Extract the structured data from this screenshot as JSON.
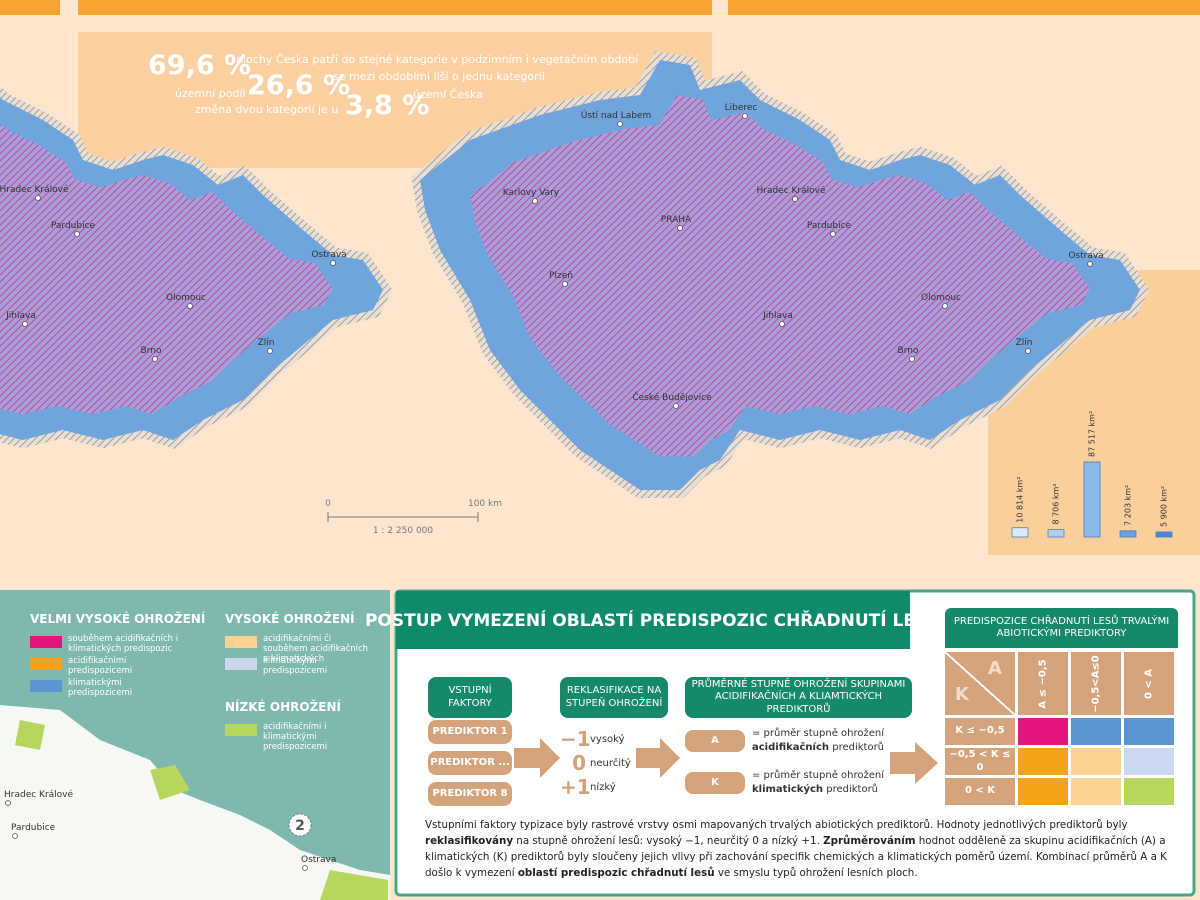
{
  "stats": {
    "l1_value": "69,6 %",
    "l1_text": "plochy Česka patří do stejné kategorie v podzimním i vegetačním období",
    "l2_prefix": "územní podíl",
    "l2_value": "26,6 %",
    "l2_text": "se mezi obdobími liší o jednu kategorii",
    "l3_prefix": "změna dvou kategorií je u",
    "l3_value": "3,8 %",
    "l3_text": "území Česka"
  },
  "map_left": {
    "cities": [
      "Hradec Králové",
      "Pardubice",
      "Ostrava",
      "Olomouc",
      "Jihlava",
      "Brno",
      "Zlín"
    ]
  },
  "map_right": {
    "cities": [
      "Liberec",
      "Ústí nad Labem",
      "Karlovy Vary",
      "Hradec Králové",
      "PRAHA",
      "Pardubice",
      "Plzeň",
      "Ostrava",
      "Olomouc",
      "Jihlava",
      "Brno",
      "Zlín",
      "České Budějovice"
    ]
  },
  "scale": {
    "start": "0",
    "end": "100 km",
    "ratio": "1 : 2 250 000"
  },
  "area_chart": {
    "values": [
      10814,
      8706,
      87517,
      7203,
      5900
    ],
    "value_labels": [
      "10 814 km²",
      "8 706 km²",
      "87 517 km²",
      "7 203 km²",
      "5 900 km²"
    ],
    "colors": [
      "#dce9f7",
      "#b3cfee",
      "#8ab8e8",
      "#6aa1dd",
      "#4a88cf"
    ]
  },
  "legend": {
    "groups": [
      {
        "title": "VELMI VYSOKÉ OHROŽENÍ",
        "items": [
          {
            "label": "souběhem acidifikačních i klimatických predispozic",
            "color": "#e6157c"
          },
          {
            "label": "acidifikačními predispozicemi",
            "color": "#f5a31a"
          },
          {
            "label": "klimatickými predispozicemi",
            "color": "#5b96d4"
          }
        ]
      },
      {
        "title": "VYSOKÉ OHROŽENÍ",
        "items": [
          {
            "label": "acidifikačními či souběhem acidifikačních a klimatických",
            "color": "#fcd291"
          },
          {
            "label": "klimatickými predispozicemi",
            "color": "#cad9ef"
          }
        ]
      },
      {
        "title": "NÍZKÉ OHROŽENÍ",
        "items": [
          {
            "label": "acidifikačními i klimatickými predispozicemi",
            "color": "#b6d65c"
          }
        ]
      }
    ]
  },
  "inset_map": {
    "cities": [
      "Hradec Králové",
      "Pardubice",
      "Ostrava"
    ],
    "page_marker": "2"
  },
  "process": {
    "title": "POSTUP VYMEZENÍ OBLASTÍ PREDISPOZIC CHŘADNUTÍ LESŮ",
    "inputs": {
      "header": "VSTUPNÍ FAKTORY",
      "items": [
        "PREDIKTOR 1",
        "PREDIKTOR ...",
        "PREDIKTOR 8"
      ]
    },
    "reclass": {
      "header": "REKLASIFIKACE NA STUPEŇ OHROŽENÍ",
      "items": [
        {
          "value": "−1",
          "label": "vysoký"
        },
        {
          "value": "0",
          "label": "neurčitý"
        },
        {
          "value": "+1",
          "label": "nízký"
        }
      ]
    },
    "averages": {
      "header": "PRŮMĚRNÉ STUPNĚ OHROŽENÍ SKUPINAMI ACIDIFIKAČNÍCH A KLIAMTICKÝCH PREDIKTORŮ",
      "items": [
        {
          "symbol": "A",
          "text": "= průměr stupně ohrožení",
          "bold": "acidifikačních",
          "suffix": "prediktorů"
        },
        {
          "symbol": "K",
          "text": "= průměr stupně ohrožení",
          "bold": "klimatických",
          "suffix": "prediktorů"
        }
      ]
    }
  },
  "matrix": {
    "title": "PREDISPOZICE CHŘADNUTÍ LESŮ TRVALÝMI ABIOTICKÝMI PREDIKTORY",
    "corner_a": "A",
    "corner_k": "K",
    "columns": [
      "A ≤ −0,5",
      "−0,5<A≤0",
      "0 < A"
    ],
    "rows": [
      "K ≤ −0,5",
      "−0,5 < K ≤ 0",
      "0 < K"
    ],
    "cells": [
      [
        "#e6157c",
        "#5b96d4",
        "#5b96d4"
      ],
      [
        "#f5a31a",
        "#fcd291",
        "#cad9ef"
      ],
      [
        "#f5a31a",
        "#fcd291",
        "#b6d65c"
      ]
    ]
  },
  "paragraph": [
    {
      "text": "Vstupními faktory typizace byly rastrové vrstvy osmi mapovaných trvalých abiotických prediktorů. Hodnoty jednotlivých prediktorů byly ",
      "bold": false
    },
    {
      "text": "reklasifikovány",
      "bold": true
    },
    {
      "text": " na stupně ohrožení lesů: vysoký −1, neurčitý 0 a nízký +1. ",
      "bold": false
    },
    {
      "text": "Zprůměrováním",
      "bold": true
    },
    {
      "text": " hodnot odděleně za skupinu acidifikačních (A) a klimatických (K) prediktorů byly sloučeny jejich vlivy při zachování specifik chemických a klimatických poměrů území. Kombinací průměrů A a K došlo k vymezení ",
      "bold": false
    },
    {
      "text": "oblastí predispozic chřadnutí lesů",
      "bold": true
    },
    {
      "text": " ve smyslu typů ohrožení lesních ploch.",
      "bold": false
    }
  ]
}
